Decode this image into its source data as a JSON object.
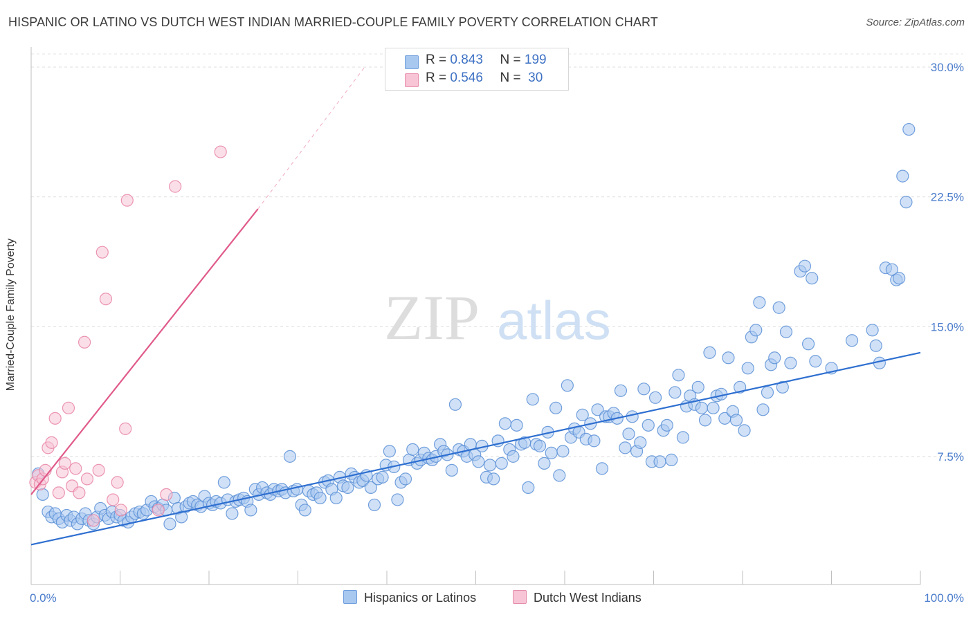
{
  "title": "HISPANIC OR LATINO VS DUTCH WEST INDIAN MARRIED-COUPLE FAMILY POVERTY CORRELATION CHART",
  "source": "Source: ZipAtlas.com",
  "watermark": {
    "zip": "ZIP",
    "atlas": "atlas"
  },
  "legend": {
    "rows": [
      {
        "r_label": "R =",
        "r_value": "0.843",
        "n_label": "N =",
        "n_value": "199",
        "color": "#a9c8f0"
      },
      {
        "r_label": "R =",
        "r_value": "0.546",
        "n_label": "N =",
        "n_value": " 30",
        "color": "#f7b8cc"
      }
    ]
  },
  "chart_data": {
    "type": "scatter",
    "title": "HISPANIC OR LATINO VS DUTCH WEST INDIAN MARRIED-COUPLE FAMILY POVERTY CORRELATION CHART",
    "xlabel": "",
    "ylabel": "Married-Couple Family Poverty",
    "xlim": [
      0,
      100
    ],
    "ylim": [
      0,
      31
    ],
    "x_tick_labels": [
      "0.0%",
      "100.0%"
    ],
    "y_ticks": [
      7.5,
      15.0,
      22.5,
      30.0
    ],
    "y_tick_labels": [
      "7.5%",
      "15.0%",
      "22.5%",
      "30.0%"
    ],
    "grid": true,
    "legend_placement": "bottom-center",
    "series": [
      {
        "name": "Hispanics or Latinos",
        "color": "#5b8fd6",
        "fill": "#a9c8f0",
        "trend": {
          "x": [
            0,
            100
          ],
          "y": [
            2.4,
            13.5
          ],
          "color": "#2e6fd0"
        },
        "points": [
          [
            0.8,
            6.5
          ],
          [
            1.3,
            5.3
          ],
          [
            1.9,
            4.3
          ],
          [
            2.3,
            4.0
          ],
          [
            2.7,
            4.2
          ],
          [
            3.1,
            3.9
          ],
          [
            3.5,
            3.7
          ],
          [
            4.0,
            4.1
          ],
          [
            4.4,
            3.8
          ],
          [
            4.8,
            4.0
          ],
          [
            5.2,
            3.6
          ],
          [
            5.7,
            3.9
          ],
          [
            6.1,
            4.2
          ],
          [
            6.5,
            3.8
          ],
          [
            7.0,
            3.6
          ],
          [
            7.4,
            4.0
          ],
          [
            7.8,
            4.5
          ],
          [
            8.3,
            4.1
          ],
          [
            8.7,
            3.9
          ],
          [
            9.1,
            4.3
          ],
          [
            9.6,
            4.0
          ],
          [
            10.0,
            4.1
          ],
          [
            10.4,
            3.8
          ],
          [
            10.9,
            3.7
          ],
          [
            11.3,
            4.0
          ],
          [
            11.7,
            4.2
          ],
          [
            12.2,
            4.3
          ],
          [
            12.6,
            4.2
          ],
          [
            13.0,
            4.4
          ],
          [
            13.5,
            4.9
          ],
          [
            13.9,
            4.6
          ],
          [
            14.3,
            4.5
          ],
          [
            14.8,
            4.7
          ],
          [
            15.2,
            4.4
          ],
          [
            15.6,
            3.6
          ],
          [
            16.1,
            5.1
          ],
          [
            16.5,
            4.5
          ],
          [
            16.9,
            4.0
          ],
          [
            17.4,
            4.6
          ],
          [
            17.8,
            4.8
          ],
          [
            18.2,
            4.9
          ],
          [
            18.7,
            4.7
          ],
          [
            19.1,
            4.6
          ],
          [
            19.5,
            5.2
          ],
          [
            20.0,
            4.8
          ],
          [
            20.4,
            4.7
          ],
          [
            20.8,
            4.9
          ],
          [
            21.3,
            4.8
          ],
          [
            21.7,
            6.0
          ],
          [
            22.1,
            5.0
          ],
          [
            22.6,
            4.2
          ],
          [
            23.0,
            4.9
          ],
          [
            23.4,
            5.0
          ],
          [
            23.9,
            5.1
          ],
          [
            24.3,
            4.9
          ],
          [
            24.7,
            4.4
          ],
          [
            25.2,
            5.6
          ],
          [
            25.6,
            5.3
          ],
          [
            26.0,
            5.7
          ],
          [
            26.5,
            5.4
          ],
          [
            26.9,
            5.3
          ],
          [
            27.3,
            5.6
          ],
          [
            27.8,
            5.5
          ],
          [
            28.2,
            5.6
          ],
          [
            28.6,
            5.4
          ],
          [
            29.1,
            7.5
          ],
          [
            29.5,
            5.5
          ],
          [
            29.9,
            5.6
          ],
          [
            30.4,
            4.7
          ],
          [
            30.8,
            4.4
          ],
          [
            31.2,
            5.5
          ],
          [
            31.7,
            5.3
          ],
          [
            32.1,
            5.4
          ],
          [
            32.5,
            5.1
          ],
          [
            33.0,
            6.0
          ],
          [
            33.4,
            6.1
          ],
          [
            33.8,
            5.6
          ],
          [
            34.3,
            5.1
          ],
          [
            34.7,
            6.3
          ],
          [
            35.1,
            5.8
          ],
          [
            35.6,
            5.7
          ],
          [
            36.0,
            6.5
          ],
          [
            36.4,
            6.3
          ],
          [
            36.9,
            6.0
          ],
          [
            37.3,
            6.1
          ],
          [
            37.7,
            6.4
          ],
          [
            38.2,
            5.7
          ],
          [
            38.6,
            4.7
          ],
          [
            39.0,
            6.2
          ],
          [
            39.5,
            6.3
          ],
          [
            39.9,
            7.0
          ],
          [
            40.3,
            7.8
          ],
          [
            40.8,
            6.9
          ],
          [
            41.2,
            5.0
          ],
          [
            41.6,
            6.0
          ],
          [
            42.1,
            6.2
          ],
          [
            42.5,
            7.3
          ],
          [
            42.9,
            7.9
          ],
          [
            43.4,
            7.1
          ],
          [
            43.8,
            7.3
          ],
          [
            44.2,
            7.7
          ],
          [
            44.7,
            7.4
          ],
          [
            45.1,
            7.3
          ],
          [
            45.5,
            7.5
          ],
          [
            46.0,
            8.2
          ],
          [
            46.4,
            7.8
          ],
          [
            46.8,
            7.6
          ],
          [
            47.3,
            6.7
          ],
          [
            47.7,
            10.5
          ],
          [
            48.1,
            7.9
          ],
          [
            48.6,
            7.8
          ],
          [
            49.0,
            7.5
          ],
          [
            49.4,
            8.2
          ],
          [
            49.9,
            7.6
          ],
          [
            50.3,
            7.2
          ],
          [
            50.7,
            8.1
          ],
          [
            51.2,
            6.3
          ],
          [
            51.6,
            7.0
          ],
          [
            52.0,
            6.2
          ],
          [
            52.5,
            8.4
          ],
          [
            52.9,
            7.1
          ],
          [
            53.3,
            9.4
          ],
          [
            53.8,
            7.9
          ],
          [
            54.2,
            7.5
          ],
          [
            54.6,
            9.3
          ],
          [
            55.1,
            8.2
          ],
          [
            55.5,
            8.3
          ],
          [
            55.9,
            5.7
          ],
          [
            56.4,
            10.8
          ],
          [
            56.8,
            8.2
          ],
          [
            57.2,
            8.1
          ],
          [
            57.7,
            7.1
          ],
          [
            58.1,
            8.9
          ],
          [
            58.5,
            7.7
          ],
          [
            59.0,
            10.3
          ],
          [
            59.4,
            6.4
          ],
          [
            59.8,
            7.8
          ],
          [
            60.3,
            11.6
          ],
          [
            60.7,
            8.6
          ],
          [
            61.1,
            9.1
          ],
          [
            61.6,
            8.9
          ],
          [
            62.0,
            9.9
          ],
          [
            62.4,
            8.5
          ],
          [
            62.9,
            9.4
          ],
          [
            63.3,
            8.4
          ],
          [
            63.7,
            10.2
          ],
          [
            64.2,
            6.8
          ],
          [
            64.6,
            9.8
          ],
          [
            65.0,
            9.8
          ],
          [
            65.5,
            10.0
          ],
          [
            65.9,
            9.7
          ],
          [
            66.3,
            11.3
          ],
          [
            66.8,
            8.0
          ],
          [
            67.2,
            8.8
          ],
          [
            67.6,
            9.8
          ],
          [
            68.1,
            7.8
          ],
          [
            68.5,
            8.3
          ],
          [
            68.9,
            11.4
          ],
          [
            69.4,
            9.3
          ],
          [
            69.8,
            7.2
          ],
          [
            70.2,
            10.9
          ],
          [
            70.7,
            7.2
          ],
          [
            71.1,
            9.0
          ],
          [
            71.5,
            9.3
          ],
          [
            72.0,
            7.3
          ],
          [
            72.4,
            11.2
          ],
          [
            72.8,
            12.2
          ],
          [
            73.3,
            8.6
          ],
          [
            73.7,
            10.4
          ],
          [
            74.1,
            11.0
          ],
          [
            74.6,
            10.5
          ],
          [
            75.0,
            11.5
          ],
          [
            75.4,
            10.3
          ],
          [
            75.8,
            9.6
          ],
          [
            76.3,
            13.5
          ],
          [
            76.7,
            10.3
          ],
          [
            77.1,
            11.0
          ],
          [
            77.6,
            11.1
          ],
          [
            78.0,
            9.7
          ],
          [
            78.4,
            13.2
          ],
          [
            78.9,
            10.1
          ],
          [
            79.3,
            9.6
          ],
          [
            79.7,
            11.5
          ],
          [
            80.2,
            9.0
          ],
          [
            80.6,
            12.6
          ],
          [
            81.0,
            14.4
          ],
          [
            81.5,
            14.8
          ],
          [
            81.9,
            16.4
          ],
          [
            82.3,
            10.2
          ],
          [
            82.8,
            11.2
          ],
          [
            83.2,
            12.8
          ],
          [
            83.6,
            13.2
          ],
          [
            84.1,
            16.1
          ],
          [
            84.5,
            11.5
          ],
          [
            84.9,
            14.7
          ],
          [
            85.4,
            12.9
          ],
          [
            86.5,
            18.2
          ],
          [
            87.0,
            18.5
          ],
          [
            87.4,
            14.0
          ],
          [
            87.8,
            17.8
          ],
          [
            96.1,
            18.4
          ],
          [
            96.8,
            18.3
          ],
          [
            97.3,
            17.7
          ],
          [
            97.6,
            17.8
          ],
          [
            98.0,
            23.7
          ],
          [
            98.4,
            22.2
          ],
          [
            98.7,
            26.4
          ],
          [
            94.6,
            14.8
          ],
          [
            95.0,
            13.9
          ],
          [
            95.4,
            12.9
          ],
          [
            90.0,
            12.6
          ],
          [
            88.2,
            13.0
          ],
          [
            92.3,
            14.2
          ]
        ]
      },
      {
        "name": "Dutch West Indians",
        "color": "#e884a4",
        "fill": "#f7c5d5",
        "trend": {
          "x": [
            0,
            25.5
          ],
          "y": [
            5.3,
            21.8
          ],
          "dash_to": [
            37.5,
            30.0
          ],
          "color": "#e05a8a"
        },
        "points": [
          [
            0.5,
            6.0
          ],
          [
            0.8,
            6.4
          ],
          [
            1.0,
            5.9
          ],
          [
            1.3,
            6.2
          ],
          [
            1.6,
            6.7
          ],
          [
            1.9,
            8.0
          ],
          [
            2.3,
            8.3
          ],
          [
            2.7,
            9.7
          ],
          [
            3.1,
            5.4
          ],
          [
            3.5,
            6.6
          ],
          [
            3.8,
            7.1
          ],
          [
            4.2,
            10.3
          ],
          [
            4.6,
            5.8
          ],
          [
            5.0,
            6.8
          ],
          [
            5.4,
            5.4
          ],
          [
            6.0,
            14.1
          ],
          [
            6.3,
            6.2
          ],
          [
            7.0,
            3.8
          ],
          [
            7.6,
            6.7
          ],
          [
            8.0,
            19.3
          ],
          [
            8.4,
            16.6
          ],
          [
            9.2,
            5.0
          ],
          [
            9.7,
            6.0
          ],
          [
            10.1,
            4.4
          ],
          [
            10.6,
            9.1
          ],
          [
            14.3,
            4.4
          ],
          [
            15.2,
            5.3
          ],
          [
            16.2,
            23.1
          ],
          [
            10.8,
            22.3
          ],
          [
            21.3,
            25.1
          ]
        ]
      }
    ]
  },
  "bottom_legend": [
    {
      "label": "Hispanics or Latinos",
      "color": "#a9c8f0"
    },
    {
      "label": "Dutch West Indians",
      "color": "#f7c5d5"
    }
  ]
}
